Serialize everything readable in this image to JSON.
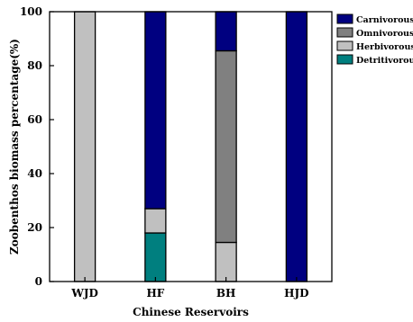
{
  "chart_data": {
    "type": "bar",
    "stacked": true,
    "categories": [
      "WJD",
      "HF",
      "BH",
      "HJD"
    ],
    "series": [
      {
        "name": "Detritivorous",
        "color": "#007f7f",
        "values": [
          0,
          18,
          0,
          0
        ]
      },
      {
        "name": "Herbivorous",
        "color": "#c0c0c0",
        "values": [
          100,
          9,
          14.5,
          0
        ]
      },
      {
        "name": "Omnivorous",
        "color": "#808080",
        "values": [
          0,
          0,
          71,
          0
        ]
      },
      {
        "name": "Carnivorous",
        "color": "#000080",
        "values": [
          0,
          73,
          14.5,
          100
        ]
      }
    ],
    "legend_order": [
      "Carnivorous",
      "Omnivorous",
      "Herbivorous",
      "Detritivorous"
    ],
    "xlabel": "Chinese Reservoirs",
    "ylabel": "Zoobenthos biomass percentage(%)",
    "ylim": [
      0,
      100
    ],
    "yticks": [
      0,
      20,
      40,
      60,
      80,
      100
    ],
    "grid": false,
    "legend_position": "top-right"
  }
}
